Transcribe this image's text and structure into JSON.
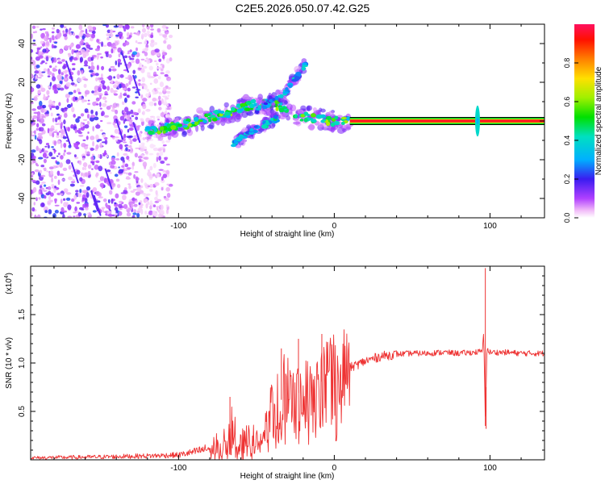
{
  "title": "C2E5.2026.050.07.42.G25",
  "chart_data": [
    {
      "type": "heatmap",
      "xlabel": "Height of straight line (km)",
      "ylabel": "Frequency (Hz)",
      "xlim": [
        -195,
        135
      ],
      "ylim": [
        -50,
        50
      ],
      "x_ticks": [
        -100,
        0,
        100
      ],
      "x_tick_labels": [
        "-100",
        "0",
        "100"
      ],
      "y_ticks": [
        -40,
        -20,
        0,
        20,
        40
      ],
      "y_tick_labels": [
        "-40",
        "-20",
        "0",
        "20",
        "40"
      ],
      "colorbar": {
        "label": "Normalized spectral amplitude",
        "range": [
          0,
          1
        ],
        "ticks": [
          0.0,
          0.2,
          0.4,
          0.6,
          0.8
        ],
        "tick_labels": [
          "0.0",
          "0.2",
          "0.4",
          "0.6",
          "0.8"
        ]
      },
      "features": [
        {
          "name": "noise-region",
          "x_range": [
            -195,
            -115
          ],
          "freq_range": [
            -50,
            50
          ],
          "amplitude": 0.15
        },
        {
          "name": "main-trace",
          "points": [
            [
              -120,
              -5
            ],
            [
              -100,
              -3
            ],
            [
              -80,
              2
            ],
            [
              -65,
              5
            ],
            [
              -55,
              8
            ],
            [
              -45,
              9
            ],
            [
              -35,
              8
            ],
            [
              -25,
              3
            ],
            [
              -10,
              1
            ],
            [
              0,
              0
            ],
            [
              10,
              0
            ]
          ],
          "amplitude": 0.55
        },
        {
          "name": "upper-branch",
          "points": [
            [
              -50,
              5
            ],
            [
              -40,
              10
            ],
            [
              -30,
              16
            ],
            [
              -25,
              22
            ],
            [
              -18,
              30
            ]
          ],
          "amplitude": 0.35
        },
        {
          "name": "lower-branch",
          "points": [
            [
              -65,
              -12
            ],
            [
              -55,
              -6
            ],
            [
              -45,
              -2
            ],
            [
              -35,
              2
            ]
          ],
          "amplitude": 0.4
        },
        {
          "name": "stable-carrier",
          "x_range": [
            10,
            135
          ],
          "frequency": 0,
          "amplitude": 0.95
        },
        {
          "name": "spike",
          "x": 92,
          "freq_range": [
            -8,
            8
          ],
          "amplitude": 0.4
        }
      ]
    },
    {
      "type": "line",
      "xlabel": "Height of straight line (km)",
      "ylabel": "SNR (10 * v/v)",
      "multiplier_label": "(x10",
      "multiplier_exponent": "4",
      "multiplier_suffix": ")",
      "xlim": [
        -195,
        135
      ],
      "ylim": [
        0,
        2
      ],
      "x_ticks": [
        -100,
        0,
        100
      ],
      "x_tick_labels": [
        "-100",
        "0",
        "100"
      ],
      "y_ticks": [
        0.5,
        1.0,
        1.5
      ],
      "y_tick_labels": [
        "0.5",
        "1.0",
        "1.5"
      ],
      "color": "#ee3333",
      "series": [
        {
          "name": "SNR",
          "x": [
            -195,
            -150,
            -120,
            -100,
            -90,
            -80,
            -70,
            -65,
            -60,
            -50,
            -45,
            -40,
            -35,
            -30,
            -25,
            -20,
            -15,
            -10,
            -5,
            0,
            5,
            10,
            20,
            30,
            40,
            50,
            60,
            70,
            80,
            90,
            95,
            96,
            97,
            98,
            99,
            100,
            110,
            120,
            135
          ],
          "y": [
            0.02,
            0.03,
            0.04,
            0.05,
            0.08,
            0.12,
            0.18,
            0.25,
            0.15,
            0.2,
            0.3,
            0.5,
            0.6,
            0.7,
            0.65,
            0.75,
            0.7,
            0.8,
            0.82,
            0.88,
            0.9,
            0.95,
            1.02,
            1.07,
            1.09,
            1.1,
            1.1,
            1.11,
            1.1,
            1.11,
            1.12,
            1.3,
            0.35,
            1.15,
            1.12,
            1.11,
            1.11,
            1.1,
            1.1
          ],
          "peaks": [
            {
              "x": -67,
              "y": 0.65
            },
            {
              "x": -34,
              "y": 1.15
            },
            {
              "x": -23,
              "y": 1.25
            },
            {
              "x": -8,
              "y": 1.3
            },
            {
              "x": 97,
              "y": 1.98
            },
            {
              "x": 97.5,
              "y": 0.32
            }
          ]
        }
      ]
    }
  ]
}
